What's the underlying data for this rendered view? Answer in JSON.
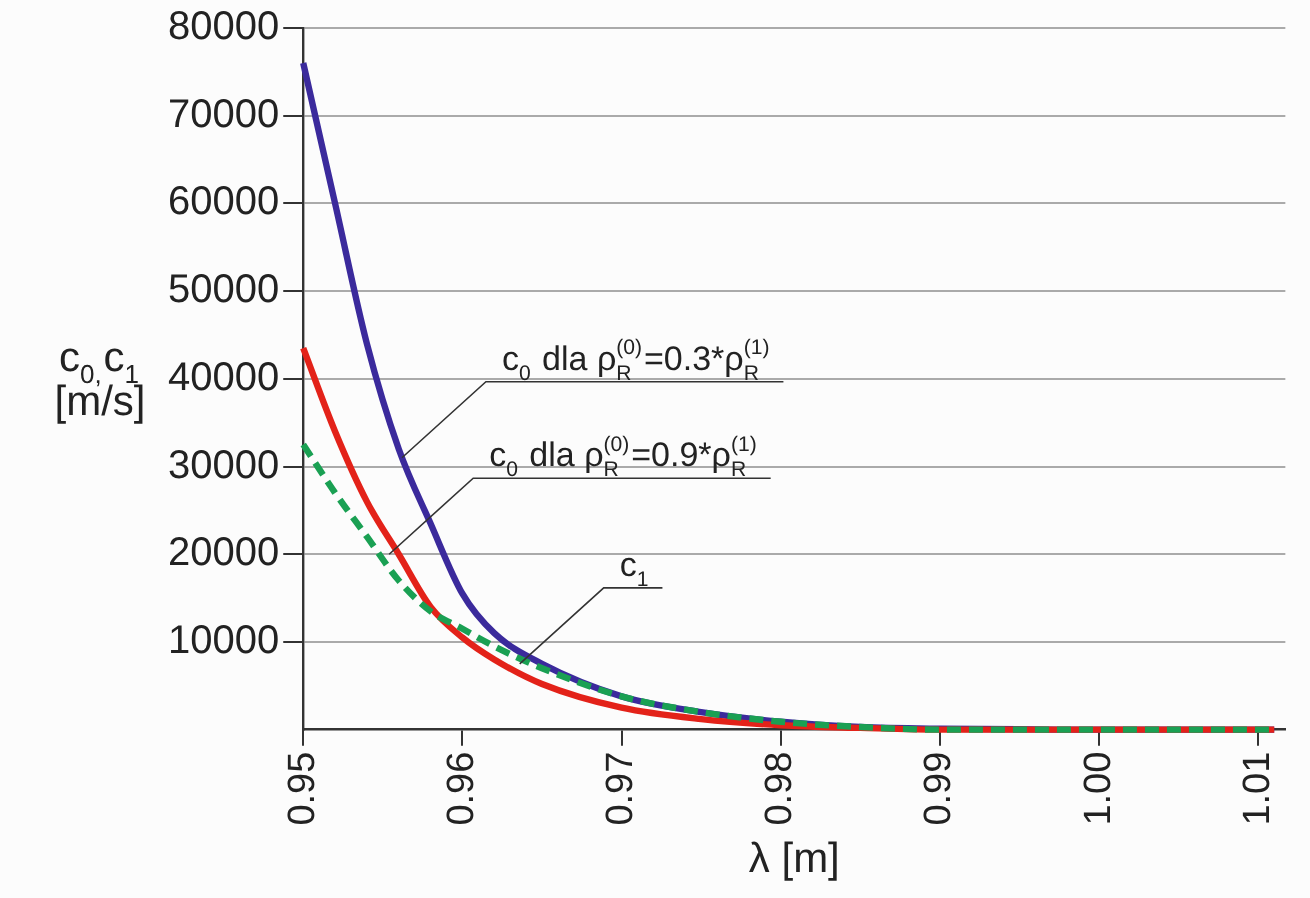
{
  "chart_data": {
    "type": "line",
    "xlabel": "λ [m]",
    "ylabel": "c$_{0,}$c$_{1}$\n[m/s]",
    "x": [
      0.95,
      0.952,
      0.954,
      0.956,
      0.958,
      0.96,
      0.962,
      0.965,
      0.97,
      0.975,
      0.98,
      0.985,
      0.99,
      1.0,
      1.011
    ],
    "series": [
      {
        "color": "#3b2a9c",
        "values": [
          76000,
          60000,
          44000,
          32000,
          23500,
          15500,
          11000,
          7500,
          3800,
          2000,
          900,
          300,
          100,
          0,
          0
        ]
      },
      {
        "color": "#e32219",
        "values": [
          43500,
          34000,
          26000,
          20000,
          14000,
          10500,
          8000,
          5200,
          2500,
          1200,
          500,
          200,
          0,
          0,
          0
        ]
      },
      {
        "color": "#1aa053",
        "line_style": "dashed",
        "values": [
          32500,
          27000,
          22000,
          17000,
          13500,
          11500,
          9500,
          7000,
          3800,
          2000,
          900,
          300,
          0,
          0,
          0
        ]
      }
    ],
    "annotations": [
      {
        "text": "c$_{0}$ dla ρ$^{(0)}$$_{R}$=0.3*ρ$^{(1)}$$_{R}$",
        "x": 0.9562,
        "y": 31000
      },
      {
        "text": "c$_{0}$ dla ρ$^{(0)}$$_{R}$=0.9*ρ$^{(1)}$$_{R}$",
        "x": 0.9554,
        "y": 20000
      },
      {
        "text": "c$_{1}$",
        "x": 0.9636,
        "y": 7500
      }
    ],
    "xlim": [
      0.95,
      1.0117
    ],
    "xticks": [
      0.95,
      0.96,
      0.97,
      0.98,
      0.99,
      {
        "value": 1.0,
        "label": "1.00"
      },
      1.01
    ],
    "ylim": [
      0,
      80000
    ],
    "yticks": [
      10000,
      20000,
      30000,
      40000,
      50000,
      60000,
      70000,
      80000
    ],
    "grid": "y",
    "legend": false,
    "marker": "none",
    "line_style": "solid"
  }
}
